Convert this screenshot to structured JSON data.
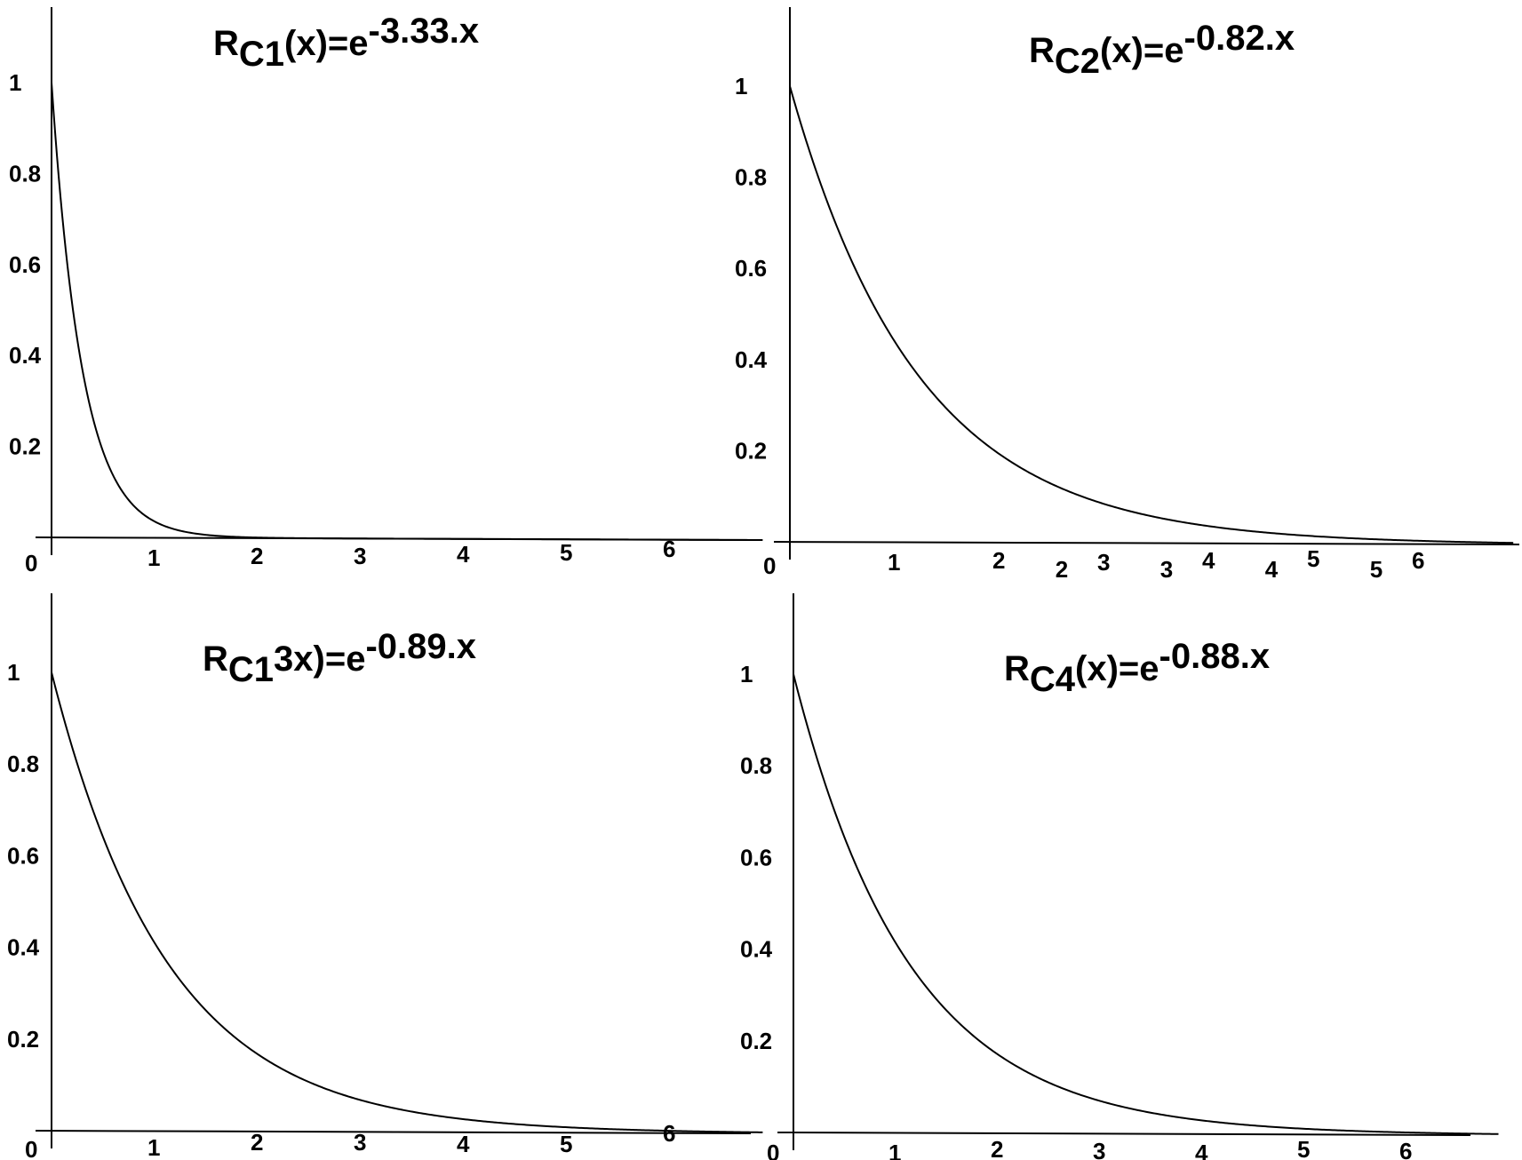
{
  "chart_data": [
    {
      "type": "line",
      "title": {
        "prefix": "R",
        "sub": "C1",
        "mid": "(x)=e",
        "sup": "-3.33.x"
      },
      "xlim": [
        0,
        6.9
      ],
      "ylim": [
        0,
        1.15
      ],
      "x_ticks": [
        "0",
        "1",
        "2",
        "3",
        "4",
        "5",
        "6"
      ],
      "y_ticks": [
        "1",
        "0.8",
        "0.6",
        "0.4",
        "0.2"
      ],
      "decay_rate": 3.33,
      "series": [
        {
          "x": [
            0,
            0.25,
            0.5,
            1,
            1.5,
            2,
            3,
            4,
            5,
            6,
            6.9
          ],
          "y": [
            1,
            0.43,
            0.19,
            0.04,
            0.01,
            0.001,
            0,
            0,
            0,
            0,
            0
          ]
        }
      ]
    },
    {
      "type": "line",
      "title": {
        "prefix": "R",
        "sub": "C2",
        "mid": "(x)=e",
        "sup": "-0.82.x"
      },
      "xlim": [
        0,
        6.9
      ],
      "ylim": [
        0,
        1.15
      ],
      "x_ticks": [
        "0",
        "1",
        "2",
        "2",
        "3",
        "3",
        "4",
        "4",
        "5",
        "5",
        "6"
      ],
      "y_ticks": [
        "1",
        "0.8",
        "0.6",
        "0.4",
        "0.2"
      ],
      "decay_rate": 0.82,
      "series": [
        {
          "x": [
            0,
            1,
            2,
            3,
            4,
            5,
            6,
            6.9
          ],
          "y": [
            1,
            0.44,
            0.19,
            0.09,
            0.04,
            0.02,
            0.01,
            0
          ]
        }
      ]
    },
    {
      "type": "line",
      "title": {
        "prefix": "R",
        "sub": "C1",
        "mid": "3x)=e",
        "sup": "-0.89.x"
      },
      "xlim": [
        0,
        6.9
      ],
      "ylim": [
        0,
        1.15
      ],
      "x_ticks": [
        "0",
        "1",
        "2",
        "3",
        "4",
        "5",
        "6"
      ],
      "y_ticks": [
        "1",
        "0.8",
        "0.6",
        "0.4",
        "0.2"
      ],
      "decay_rate": 0.89,
      "series": [
        {
          "x": [
            0,
            1,
            2,
            3,
            4,
            5,
            6,
            6.9
          ],
          "y": [
            1,
            0.41,
            0.17,
            0.07,
            0.03,
            0.01,
            0,
            0
          ]
        }
      ]
    },
    {
      "type": "line",
      "title": {
        "prefix": "R",
        "sub": "C4",
        "mid": "(x)=e",
        "sup": "-0.88.x"
      },
      "xlim": [
        0,
        6.9
      ],
      "ylim": [
        0,
        1.15
      ],
      "x_ticks": [
        "0",
        "1",
        "2",
        "3",
        "4",
        "5",
        "6"
      ],
      "y_ticks": [
        "1",
        "0.8",
        "0.6",
        "0.4",
        "0.2"
      ],
      "decay_rate": 0.88,
      "series": [
        {
          "x": [
            0,
            1,
            2,
            3,
            4,
            5,
            6,
            6.9
          ],
          "y": [
            1,
            0.41,
            0.17,
            0.07,
            0.03,
            0.01,
            0,
            0
          ]
        }
      ]
    }
  ]
}
